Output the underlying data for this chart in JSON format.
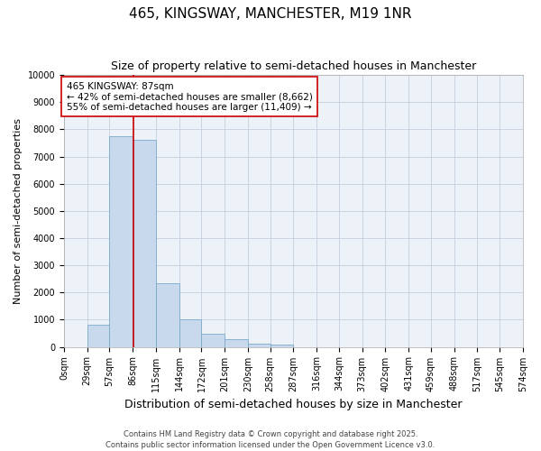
{
  "title": "465, KINGSWAY, MANCHESTER, M19 1NR",
  "subtitle": "Size of property relative to semi-detached houses in Manchester",
  "xlabel": "Distribution of semi-detached houses by size in Manchester",
  "ylabel": "Number of semi-detached properties",
  "annotation_line1": "465 KINGSWAY: 87sqm",
  "annotation_line2": "← 42% of semi-detached houses are smaller (8,662)",
  "annotation_line3": "55% of semi-detached houses are larger (11,409) →",
  "property_size": 87,
  "footer_line1": "Contains HM Land Registry data © Crown copyright and database right 2025.",
  "footer_line2": "Contains public sector information licensed under the Open Government Licence v3.0.",
  "bin_edges": [
    0,
    29,
    57,
    86,
    115,
    144,
    172,
    201,
    230,
    258,
    287,
    316,
    344,
    373,
    402,
    431,
    459,
    488,
    517,
    545,
    574
  ],
  "bin_labels": [
    "0sqm",
    "29sqm",
    "57sqm",
    "86sqm",
    "115sqm",
    "144sqm",
    "172sqm",
    "201sqm",
    "230sqm",
    "258sqm",
    "287sqm",
    "316sqm",
    "344sqm",
    "373sqm",
    "402sqm",
    "431sqm",
    "459sqm",
    "488sqm",
    "517sqm",
    "545sqm",
    "574sqm"
  ],
  "bar_heights": [
    0,
    800,
    7750,
    7600,
    2350,
    1020,
    480,
    300,
    130,
    100,
    0,
    0,
    0,
    0,
    0,
    0,
    0,
    0,
    0,
    0
  ],
  "bar_color": "#c8d8ed",
  "bar_edge_color": "#7aaac8",
  "line_color": "#cc0000",
  "ylim": [
    0,
    10000
  ],
  "yticks": [
    0,
    1000,
    2000,
    3000,
    4000,
    5000,
    6000,
    7000,
    8000,
    9000,
    10000
  ],
  "background_color": "#edf1f8",
  "grid_color": "#c0c8d8",
  "title_fontsize": 11,
  "subtitle_fontsize": 9,
  "xlabel_fontsize": 9,
  "ylabel_fontsize": 8,
  "annotation_box_color": "#ffffff",
  "annotation_box_edge": "#cc0000",
  "annotation_fontsize": 7.5,
  "footer_fontsize": 6,
  "tick_fontsize": 7
}
